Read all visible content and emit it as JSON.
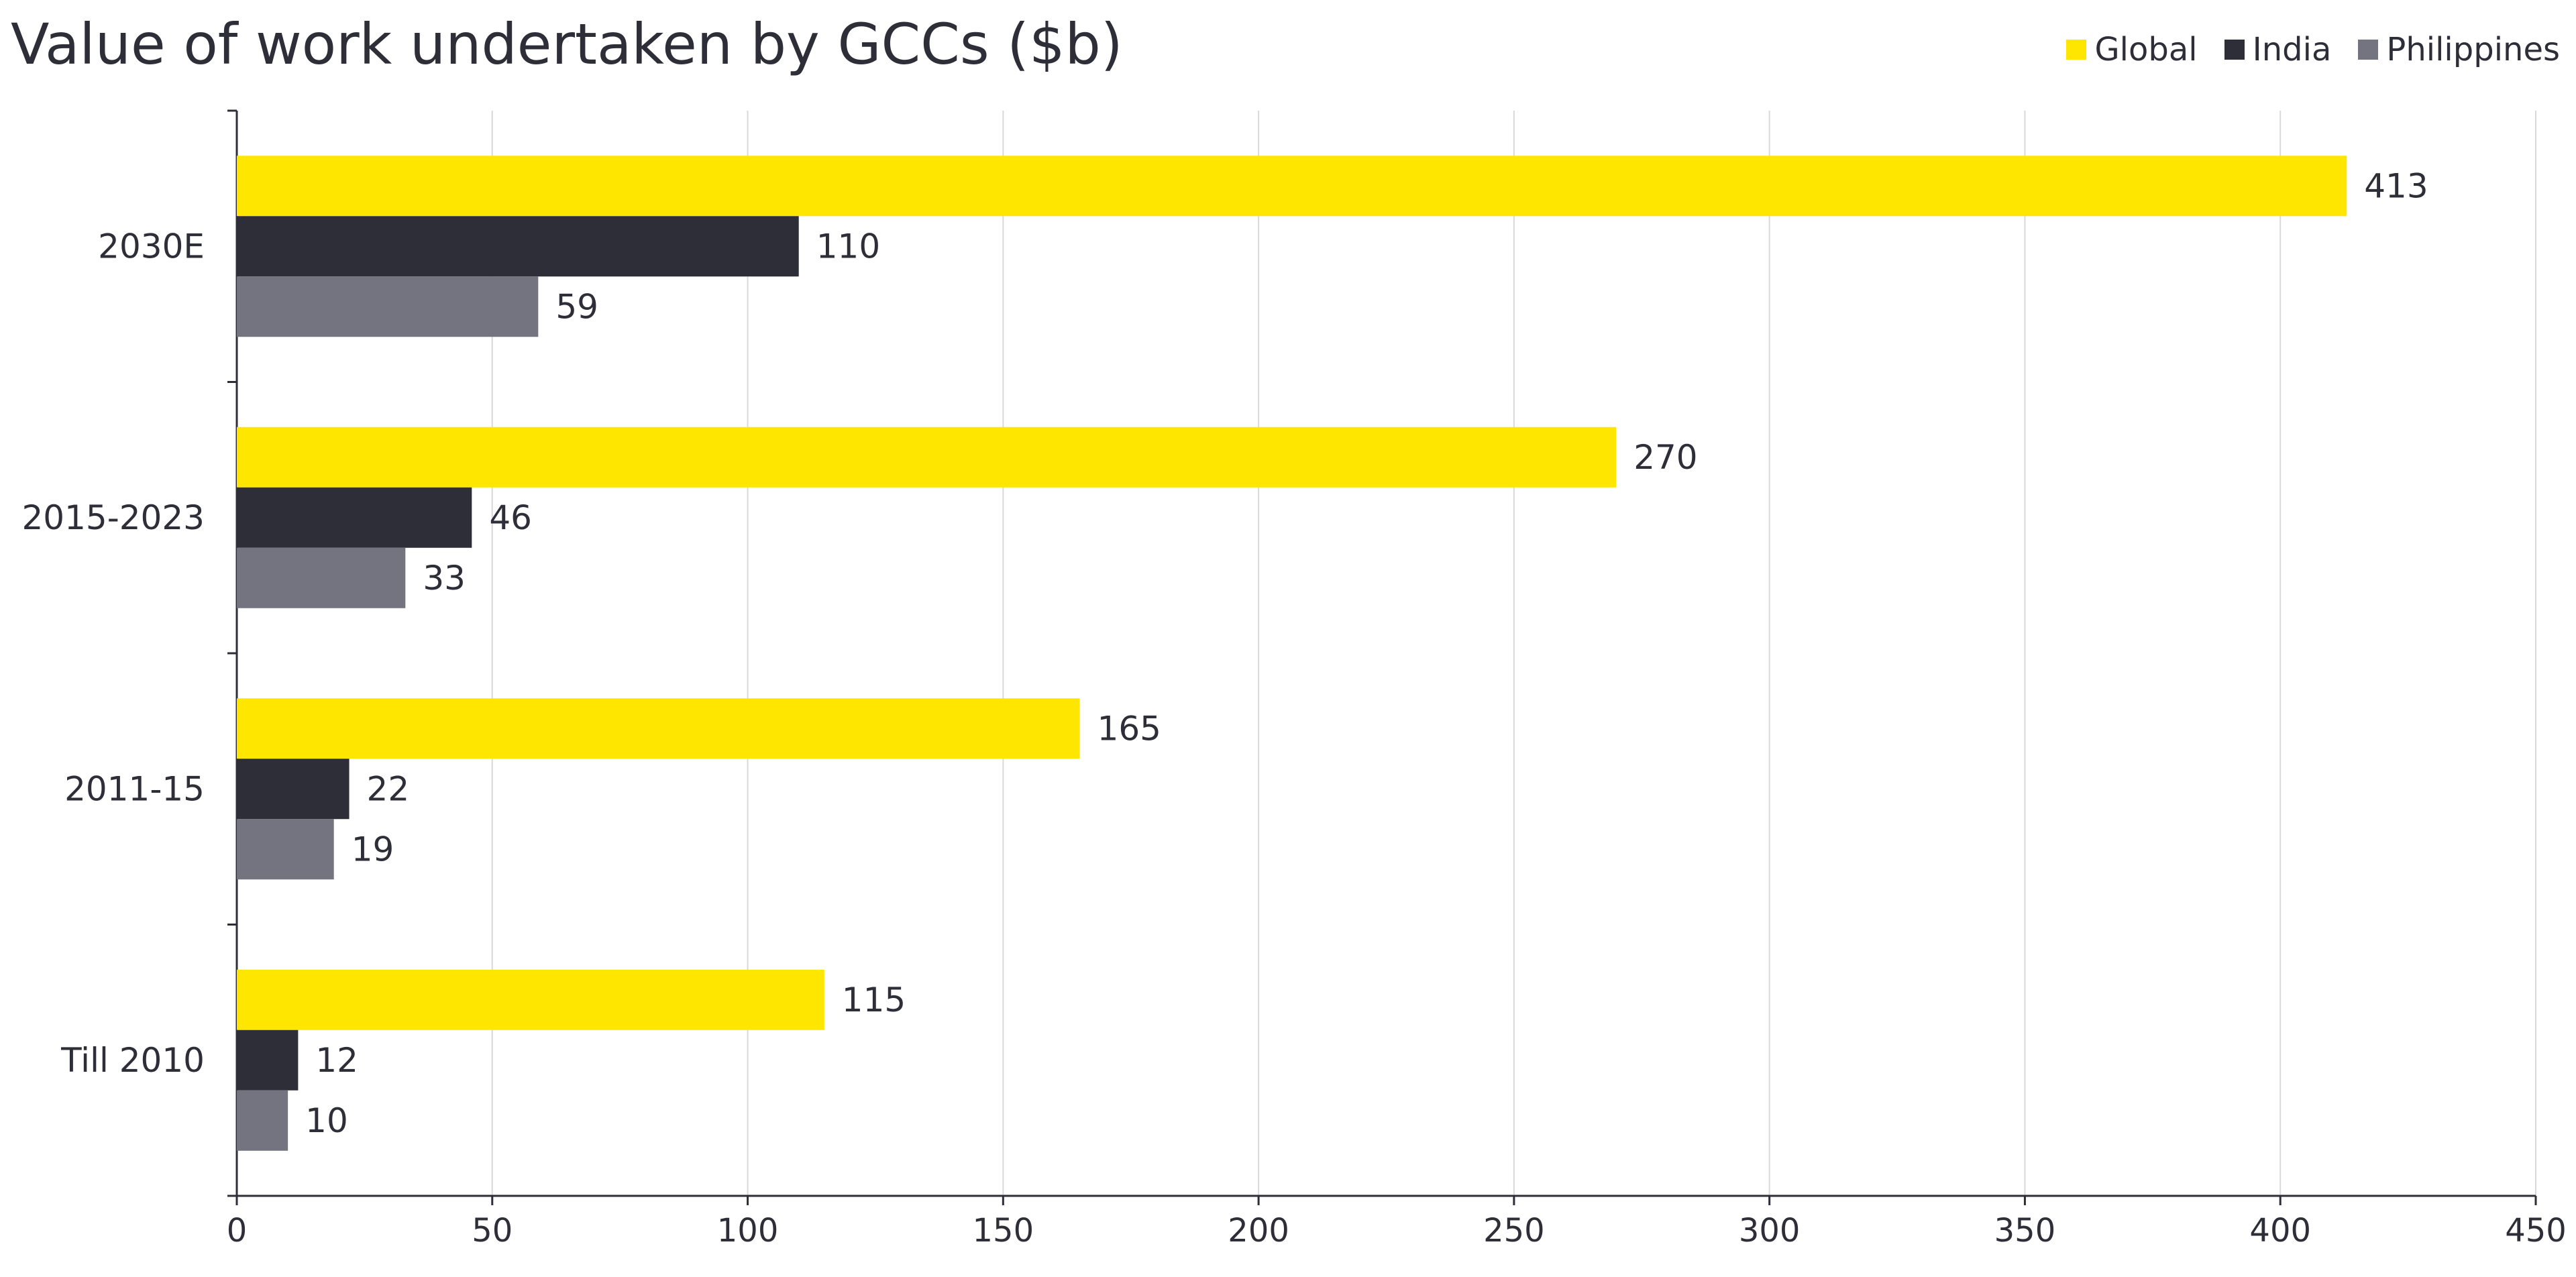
{
  "chart_data": {
    "type": "bar",
    "orientation": "horizontal",
    "title": "Value of work undertaken by GCCs ($b)",
    "categories": [
      "2030E",
      "2015-2023",
      "2011-15",
      "Till 2010"
    ],
    "series": [
      {
        "name": "Global",
        "color": "#ffe600",
        "values": [
          413,
          270,
          165,
          115
        ]
      },
      {
        "name": "India",
        "color": "#2e2e38",
        "values": [
          110,
          46,
          22,
          12
        ]
      },
      {
        "name": "Philippines",
        "color": "#747480",
        "values": [
          59,
          33,
          19,
          10
        ]
      }
    ],
    "xlim": [
      0,
      450
    ],
    "xticks": [
      0,
      50,
      100,
      150,
      200,
      250,
      300,
      350,
      400,
      450
    ],
    "grid": "vertical",
    "legend": "top-right",
    "data_labels": true
  }
}
